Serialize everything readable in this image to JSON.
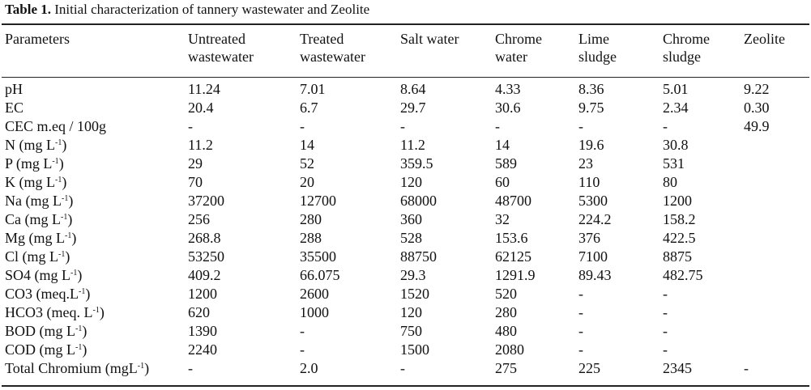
{
  "caption": {
    "label": "Table 1.",
    "text": " Initial characterization of tannery wastewater and Zeolite"
  },
  "columns": [
    {
      "line1": "Parameters",
      "line2": ""
    },
    {
      "line1": "Untreated",
      "line2": "wastewater"
    },
    {
      "line1": "Treated",
      "line2": "wastewater"
    },
    {
      "line1": "Salt water",
      "line2": ""
    },
    {
      "line1": "Chrome",
      "line2": "water"
    },
    {
      "line1": "Lime",
      "line2": "sludge"
    },
    {
      "line1": "Chrome",
      "line2": "sludge"
    },
    {
      "line1": "Zeolite",
      "line2": ""
    }
  ],
  "rows": [
    {
      "param": "pH",
      "sup": "",
      "suffix": "",
      "values": [
        "11.24",
        "7.01",
        "8.64",
        "4.33",
        "8.36",
        "5.01",
        "9.22"
      ]
    },
    {
      "param": "EC",
      "sup": "",
      "suffix": "",
      "values": [
        "20.4",
        "6.7",
        "29.7",
        "30.6",
        "9.75",
        "2.34",
        "0.30"
      ]
    },
    {
      "param": "CEC m.eq / 100g",
      "sup": "",
      "suffix": "",
      "values": [
        "-",
        "-",
        "-",
        "-",
        "-",
        "-",
        "49.9"
      ]
    },
    {
      "param": "N (mg L",
      "sup": "-1",
      "suffix": ")",
      "values": [
        "11.2",
        "14",
        "11.2",
        "14",
        "19.6",
        "30.8",
        ""
      ]
    },
    {
      "param": "P (mg L",
      "sup": "-1",
      "suffix": ")",
      "values": [
        "29",
        "52",
        "359.5",
        "589",
        "23",
        "531",
        ""
      ]
    },
    {
      "param": "K (mg L",
      "sup": "-1",
      "suffix": ")",
      "values": [
        "70",
        "20",
        "120",
        "60",
        "110",
        "80",
        ""
      ]
    },
    {
      "param": "Na (mg L",
      "sup": "-1",
      "suffix": ")",
      "values": [
        "37200",
        "12700",
        "68000",
        "48700",
        "5300",
        "1200",
        ""
      ]
    },
    {
      "param": "Ca (mg L",
      "sup": "-1",
      "suffix": ")",
      "values": [
        "256",
        "280",
        "360",
        "32",
        "224.2",
        "158.2",
        ""
      ]
    },
    {
      "param": "Mg (mg L",
      "sup": "-1",
      "suffix": ")",
      "values": [
        "268.8",
        "288",
        "528",
        "153.6",
        "376",
        "422.5",
        ""
      ]
    },
    {
      "param": "Cl (mg L",
      "sup": "-1",
      "suffix": ")",
      "values": [
        "53250",
        "35500",
        "88750",
        "62125",
        "7100",
        "8875",
        ""
      ]
    },
    {
      "param": "SO4 (mg L",
      "sup": "-1",
      "suffix": ")",
      "values": [
        "409.2",
        "66.075",
        "29.3",
        "1291.9",
        "89.43",
        "482.75",
        ""
      ]
    },
    {
      "param": "CO3 (meq.L",
      "sup": "-1",
      "suffix": ")",
      "values": [
        "1200",
        "2600",
        "1520",
        "520",
        "-",
        "-",
        ""
      ]
    },
    {
      "param": "HCO3 (meq. L",
      "sup": "-1",
      "suffix": ")",
      "values": [
        "620",
        "1000",
        "120",
        "280",
        "-",
        "-",
        ""
      ]
    },
    {
      "param": "BOD (mg L",
      "sup": "-1",
      "suffix": ")",
      "values": [
        "1390",
        "-",
        "750",
        "480",
        "-",
        "-",
        ""
      ]
    },
    {
      "param": "COD (mg L",
      "sup": "-1",
      "suffix": ")",
      "values": [
        "2240",
        "-",
        "1500",
        "2080",
        "-",
        "-",
        ""
      ]
    },
    {
      "param": "Total Chromium (mgL",
      "sup": "-1",
      "suffix": ")",
      "values": [
        "-",
        "2.0",
        "-",
        "275",
        "225",
        "2345",
        "-"
      ]
    }
  ]
}
